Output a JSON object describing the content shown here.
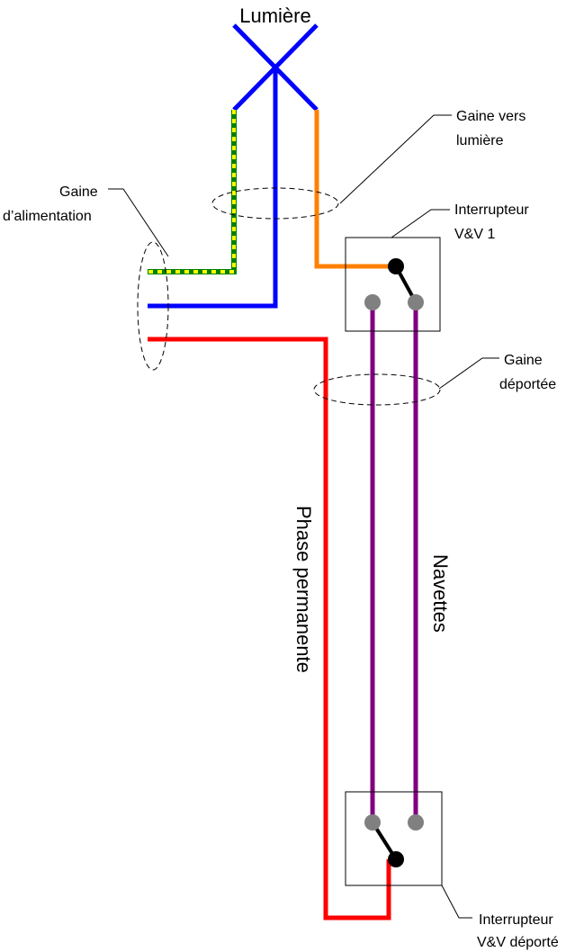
{
  "title": "Lumière",
  "labels": {
    "gaine_lumiere_line1": "Gaine vers",
    "gaine_lumiere_line2": "lumière",
    "gaine_alim_line1": "Gaine",
    "gaine_alim_line2": "d’alimentation",
    "interrupteur1_line1": "Interrupteur",
    "interrupteur1_line2": "V&V 1",
    "gaine_deportee_line1": "Gaine",
    "gaine_deportee_line2": "déportée",
    "phase": "Phase permanente",
    "navettes": "Navettes",
    "interrupteur2_line1": "Interrupteur",
    "interrupteur2_line2": "V&V déporté"
  },
  "colors": {
    "neutral": "#0000ff",
    "phase": "#ff0000",
    "return": "#ff8000",
    "earth_green": "#008000",
    "earth_yellow": "#ffff00",
    "navette": "#800080",
    "terminal": "#808080",
    "pivot": "#000000"
  }
}
